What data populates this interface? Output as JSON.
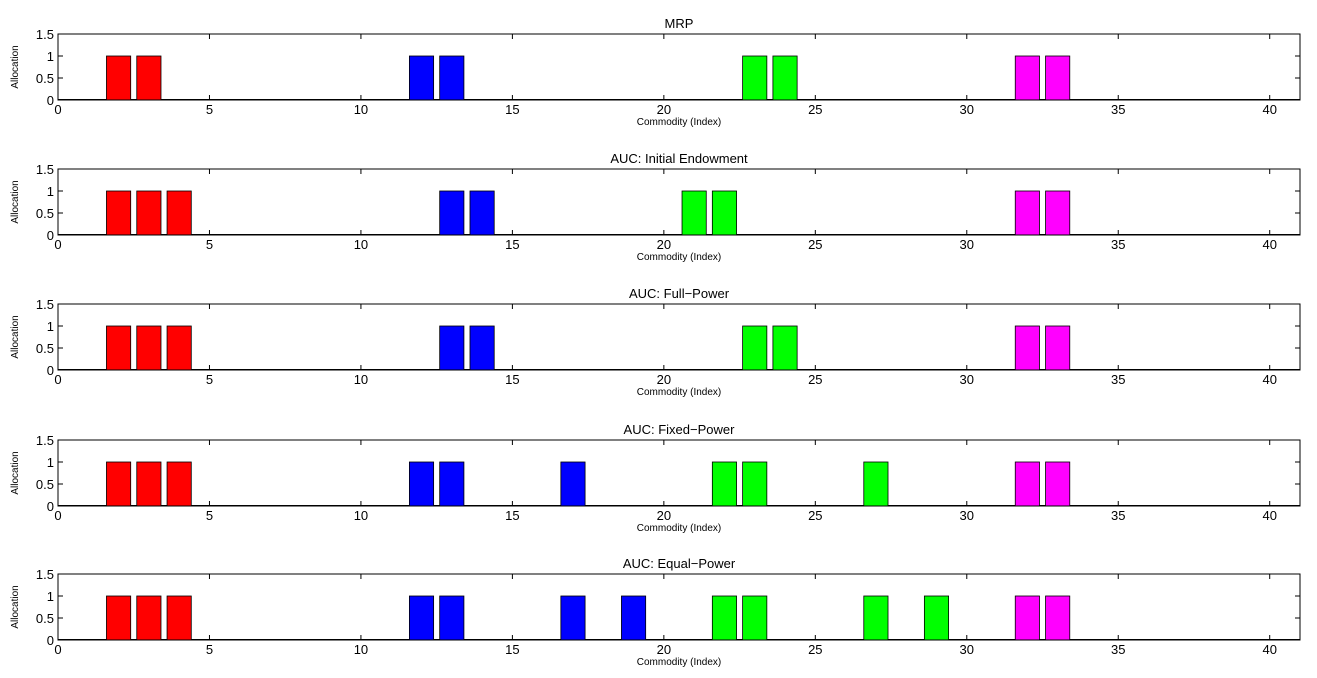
{
  "chart_data": [
    {
      "type": "bar",
      "title": "MRP",
      "xlabel": "Commodity (Index)",
      "ylabel": "Allocation",
      "xlim": [
        0,
        41
      ],
      "ylim": [
        0,
        1.5
      ],
      "xticks": [
        0,
        5,
        10,
        15,
        20,
        25,
        30,
        35,
        40
      ],
      "yticks": [
        0,
        0.5,
        1,
        1.5
      ],
      "xtick_labels": [
        "0",
        "5",
        "10",
        "15",
        "20",
        "25",
        "30",
        "35",
        "40"
      ],
      "ytick_labels": [
        "0",
        "0.5",
        "1",
        "1.5"
      ],
      "bars": [
        {
          "x": 2,
          "value": 1,
          "color": "#ff0000"
        },
        {
          "x": 3,
          "value": 1,
          "color": "#ff0000"
        },
        {
          "x": 12,
          "value": 1,
          "color": "#0000ff"
        },
        {
          "x": 13,
          "value": 1,
          "color": "#0000ff"
        },
        {
          "x": 23,
          "value": 1,
          "color": "#00ff00"
        },
        {
          "x": 24,
          "value": 1,
          "color": "#00ff00"
        },
        {
          "x": 32,
          "value": 1,
          "color": "#ff00ff"
        },
        {
          "x": 33,
          "value": 1,
          "color": "#ff00ff"
        }
      ]
    },
    {
      "type": "bar",
      "title": "AUC: Initial Endowment",
      "xlabel": "Commodity (Index)",
      "ylabel": "Allocation",
      "xlim": [
        0,
        41
      ],
      "ylim": [
        0,
        1.5
      ],
      "xticks": [
        0,
        5,
        10,
        15,
        20,
        25,
        30,
        35,
        40
      ],
      "yticks": [
        0,
        0.5,
        1,
        1.5
      ],
      "xtick_labels": [
        "0",
        "5",
        "10",
        "15",
        "20",
        "25",
        "30",
        "35",
        "40"
      ],
      "ytick_labels": [
        "0",
        "0.5",
        "1",
        "1.5"
      ],
      "bars": [
        {
          "x": 2,
          "value": 1,
          "color": "#ff0000"
        },
        {
          "x": 3,
          "value": 1,
          "color": "#ff0000"
        },
        {
          "x": 4,
          "value": 1,
          "color": "#ff0000"
        },
        {
          "x": 13,
          "value": 1,
          "color": "#0000ff"
        },
        {
          "x": 14,
          "value": 1,
          "color": "#0000ff"
        },
        {
          "x": 21,
          "value": 1,
          "color": "#00ff00"
        },
        {
          "x": 22,
          "value": 1,
          "color": "#00ff00"
        },
        {
          "x": 32,
          "value": 1,
          "color": "#ff00ff"
        },
        {
          "x": 33,
          "value": 1,
          "color": "#ff00ff"
        }
      ]
    },
    {
      "type": "bar",
      "title": "AUC: Full−Power",
      "xlabel": "Commodity (Index)",
      "ylabel": "Allocation",
      "xlim": [
        0,
        41
      ],
      "ylim": [
        0,
        1.5
      ],
      "xticks": [
        0,
        5,
        10,
        15,
        20,
        25,
        30,
        35,
        40
      ],
      "yticks": [
        0,
        0.5,
        1,
        1.5
      ],
      "xtick_labels": [
        "0",
        "5",
        "10",
        "15",
        "20",
        "25",
        "30",
        "35",
        "40"
      ],
      "ytick_labels": [
        "0",
        "0.5",
        "1",
        "1.5"
      ],
      "bars": [
        {
          "x": 2,
          "value": 1,
          "color": "#ff0000"
        },
        {
          "x": 3,
          "value": 1,
          "color": "#ff0000"
        },
        {
          "x": 4,
          "value": 1,
          "color": "#ff0000"
        },
        {
          "x": 13,
          "value": 1,
          "color": "#0000ff"
        },
        {
          "x": 14,
          "value": 1,
          "color": "#0000ff"
        },
        {
          "x": 23,
          "value": 1,
          "color": "#00ff00"
        },
        {
          "x": 24,
          "value": 1,
          "color": "#00ff00"
        },
        {
          "x": 32,
          "value": 1,
          "color": "#ff00ff"
        },
        {
          "x": 33,
          "value": 1,
          "color": "#ff00ff"
        }
      ]
    },
    {
      "type": "bar",
      "title": "AUC: Fixed−Power",
      "xlabel": "Commodity (Index)",
      "ylabel": "Allocation",
      "xlim": [
        0,
        41
      ],
      "ylim": [
        0,
        1.5
      ],
      "xticks": [
        0,
        5,
        10,
        15,
        20,
        25,
        30,
        35,
        40
      ],
      "yticks": [
        0,
        0.5,
        1,
        1.5
      ],
      "xtick_labels": [
        "0",
        "5",
        "10",
        "15",
        "20",
        "25",
        "30",
        "35",
        "40"
      ],
      "ytick_labels": [
        "0",
        "0.5",
        "1",
        "1.5"
      ],
      "bars": [
        {
          "x": 2,
          "value": 1,
          "color": "#ff0000"
        },
        {
          "x": 3,
          "value": 1,
          "color": "#ff0000"
        },
        {
          "x": 4,
          "value": 1,
          "color": "#ff0000"
        },
        {
          "x": 12,
          "value": 1,
          "color": "#0000ff"
        },
        {
          "x": 13,
          "value": 1,
          "color": "#0000ff"
        },
        {
          "x": 17,
          "value": 1,
          "color": "#0000ff"
        },
        {
          "x": 22,
          "value": 1,
          "color": "#00ff00"
        },
        {
          "x": 23,
          "value": 1,
          "color": "#00ff00"
        },
        {
          "x": 27,
          "value": 1,
          "color": "#00ff00"
        },
        {
          "x": 32,
          "value": 1,
          "color": "#ff00ff"
        },
        {
          "x": 33,
          "value": 1,
          "color": "#ff00ff"
        }
      ]
    },
    {
      "type": "bar",
      "title": "AUC: Equal−Power",
      "xlabel": "Commodity (Index)",
      "ylabel": "Allocation",
      "xlim": [
        0,
        41
      ],
      "ylim": [
        0,
        1.5
      ],
      "xticks": [
        0,
        5,
        10,
        15,
        20,
        25,
        30,
        35,
        40
      ],
      "yticks": [
        0,
        0.5,
        1,
        1.5
      ],
      "xtick_labels": [
        "0",
        "5",
        "10",
        "15",
        "20",
        "25",
        "30",
        "35",
        "40"
      ],
      "ytick_labels": [
        "0",
        "0.5",
        "1",
        "1.5"
      ],
      "bars": [
        {
          "x": 2,
          "value": 1,
          "color": "#ff0000"
        },
        {
          "x": 3,
          "value": 1,
          "color": "#ff0000"
        },
        {
          "x": 4,
          "value": 1,
          "color": "#ff0000"
        },
        {
          "x": 12,
          "value": 1,
          "color": "#0000ff"
        },
        {
          "x": 13,
          "value": 1,
          "color": "#0000ff"
        },
        {
          "x": 17,
          "value": 1,
          "color": "#0000ff"
        },
        {
          "x": 19,
          "value": 1,
          "color": "#0000ff"
        },
        {
          "x": 22,
          "value": 1,
          "color": "#00ff00"
        },
        {
          "x": 23,
          "value": 1,
          "color": "#00ff00"
        },
        {
          "x": 27,
          "value": 1,
          "color": "#00ff00"
        },
        {
          "x": 29,
          "value": 1,
          "color": "#00ff00"
        },
        {
          "x": 32,
          "value": 1,
          "color": "#ff00ff"
        },
        {
          "x": 33,
          "value": 1,
          "color": "#ff00ff"
        }
      ]
    }
  ]
}
